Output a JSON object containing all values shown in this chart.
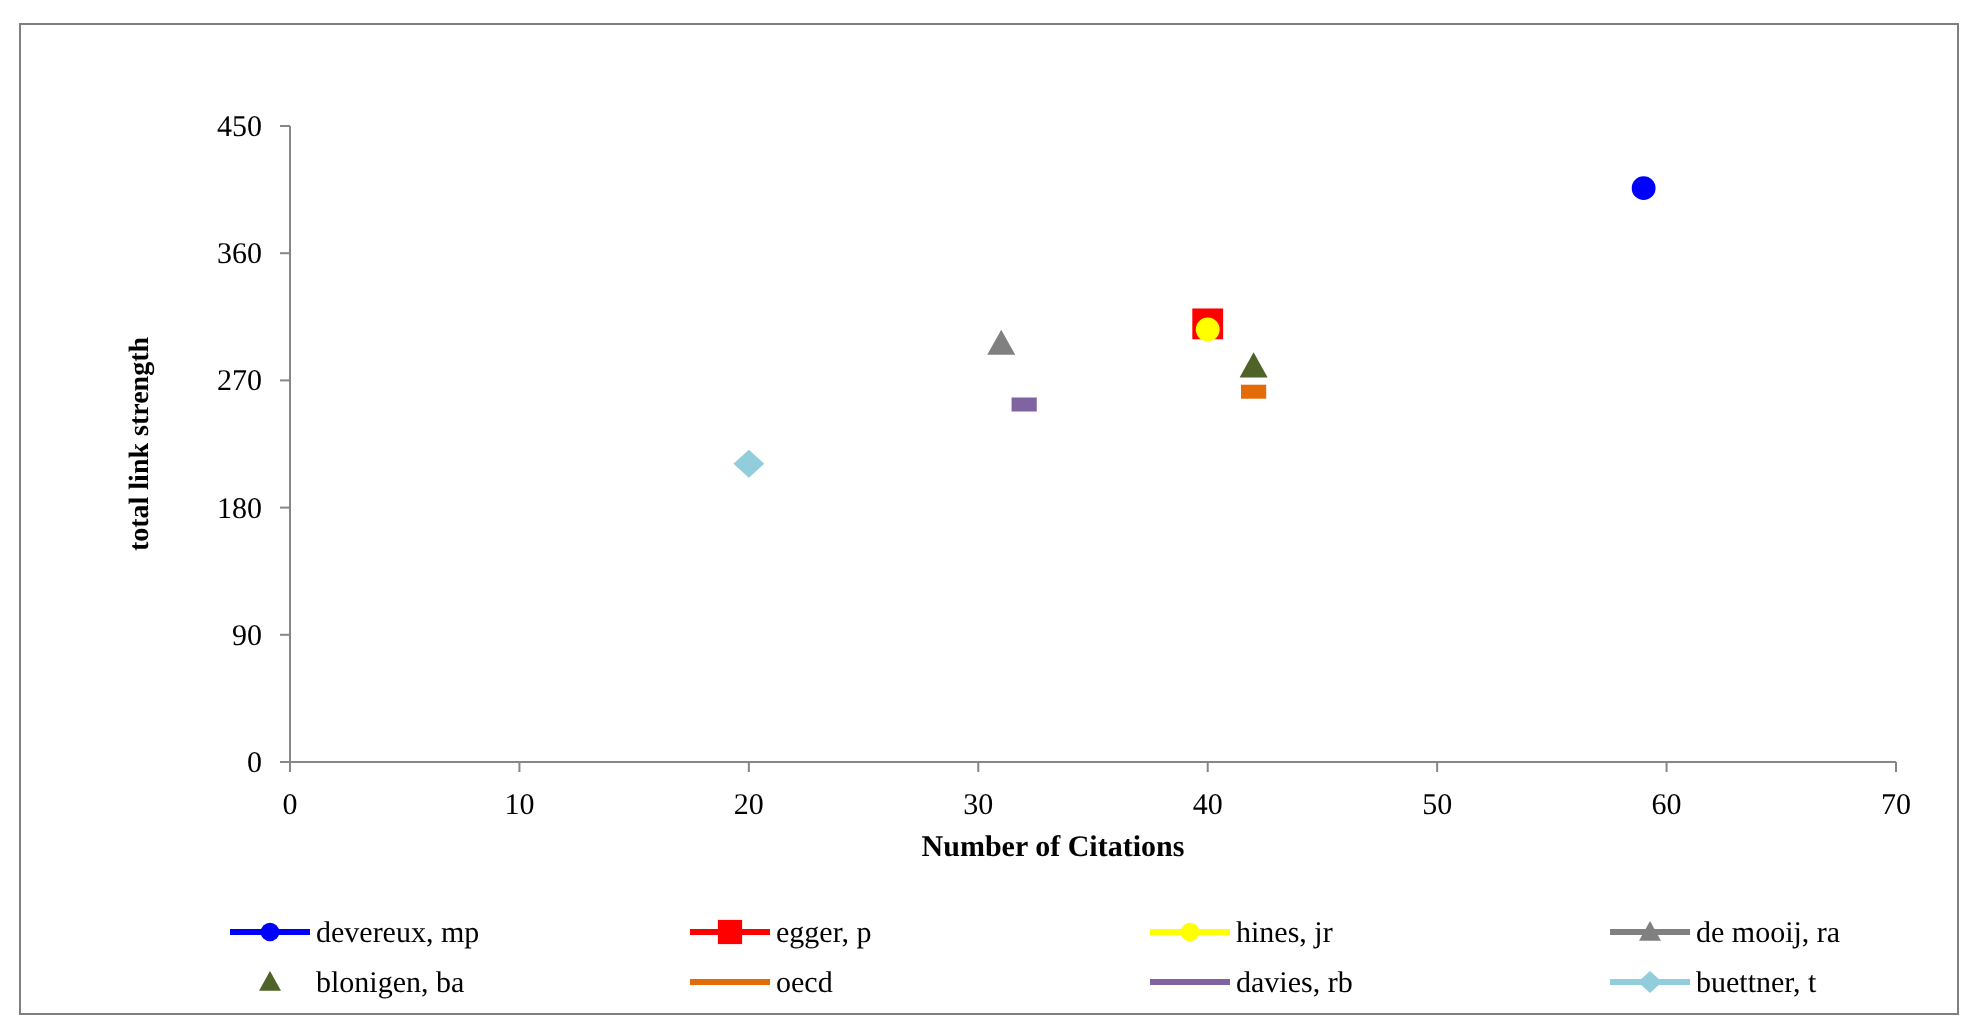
{
  "chart_data": {
    "type": "scatter",
    "xlabel": "Number of Citations",
    "ylabel": "total link strength",
    "xlim": [
      0,
      70
    ],
    "xticks": [
      0,
      10,
      20,
      30,
      40,
      50,
      60,
      70
    ],
    "ylim": [
      0,
      450
    ],
    "yticks": [
      0,
      90,
      180,
      270,
      360,
      450
    ],
    "grid": false,
    "legend": "bottom",
    "series": [
      {
        "name": "devereux, mp",
        "color": "#0000ff",
        "x": [
          59
        ],
        "values": [
          406
        ],
        "marker": "circle",
        "line_style": "solid"
      },
      {
        "name": "egger, p",
        "color": "#ff0000",
        "x": [
          40
        ],
        "values": [
          310
        ],
        "marker": "square",
        "line_style": "solid"
      },
      {
        "name": "hines, jr",
        "color": "#ffff00",
        "x": [
          40
        ],
        "values": [
          306
        ],
        "marker": "circle",
        "line_style": "solid"
      },
      {
        "name": "de mooij, ra",
        "color": "#808080",
        "x": [
          31
        ],
        "values": [
          296
        ],
        "marker": "triangle",
        "line_style": "solid"
      },
      {
        "name": "blonigen, ba",
        "color": "#4f6228",
        "x": [
          42
        ],
        "values": [
          280
        ],
        "marker": "triangle",
        "line_style": "none"
      },
      {
        "name": "oecd",
        "color": "#e36c09",
        "x": [
          42
        ],
        "values": [
          262
        ],
        "line_style": "solid"
      },
      {
        "name": "davies, rb",
        "color": "#8064a2",
        "x": [
          32
        ],
        "values": [
          253
        ],
        "line_style": "solid"
      },
      {
        "name": "buettner, t",
        "color": "#92cddc",
        "x": [
          20
        ],
        "values": [
          211
        ],
        "marker": "diamond",
        "line_style": "solid"
      }
    ]
  }
}
